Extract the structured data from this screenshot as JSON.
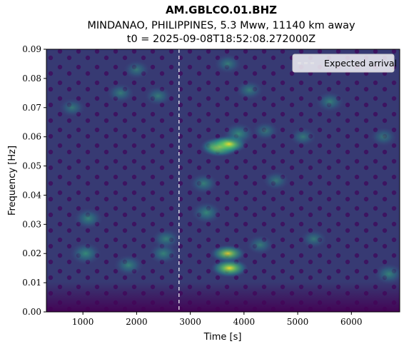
{
  "chart_data": {
    "type": "heatmap",
    "title": "AM.GBLCO.01.BHZ",
    "subtitle": "MINDANAO, PHILIPPINES, 5.3 Mww, 11140 km away",
    "subtitle2": "t0 = 2025-09-08T18:52:08.272000Z",
    "xlabel": "Time [s]",
    "ylabel": "Frequency [Hz]",
    "xlim": [
      320,
      6900
    ],
    "ylim": [
      0,
      0.09
    ],
    "xticks": [
      1000,
      2000,
      3000,
      4000,
      5000,
      6000
    ],
    "yticks": [
      0.0,
      0.01,
      0.02,
      0.03,
      0.04,
      0.05,
      0.06,
      0.07,
      0.08,
      0.09
    ],
    "ytick_labels": [
      "0.00",
      "0.01",
      "0.02",
      "0.03",
      "0.04",
      "0.05",
      "0.06",
      "0.07",
      "0.08",
      "0.09"
    ],
    "colormap": "viridis",
    "expected_arrival": 2790,
    "legend": {
      "label": "Expected arrival",
      "placement": "upper-right"
    },
    "hotspots": [
      {
        "t": 3550,
        "f": 0.0565,
        "intensity": 1.0
      },
      {
        "t": 3720,
        "f": 0.0575,
        "intensity": 0.8
      },
      {
        "t": 3900,
        "f": 0.061,
        "intensity": 0.55
      },
      {
        "t": 3730,
        "f": 0.015,
        "intensity": 0.85
      },
      {
        "t": 3700,
        "f": 0.02,
        "intensity": 0.7
      },
      {
        "t": 3300,
        "f": 0.034,
        "intensity": 0.5
      },
      {
        "t": 3250,
        "f": 0.044,
        "intensity": 0.4
      },
      {
        "t": 1050,
        "f": 0.02,
        "intensity": 0.55
      },
      {
        "t": 1100,
        "f": 0.032,
        "intensity": 0.45
      },
      {
        "t": 1850,
        "f": 0.016,
        "intensity": 0.45
      },
      {
        "t": 2500,
        "f": 0.02,
        "intensity": 0.45
      },
      {
        "t": 2550,
        "f": 0.025,
        "intensity": 0.4
      },
      {
        "t": 6700,
        "f": 0.013,
        "intensity": 0.45
      },
      {
        "t": 5600,
        "f": 0.072,
        "intensity": 0.4
      },
      {
        "t": 4100,
        "f": 0.076,
        "intensity": 0.35
      },
      {
        "t": 1700,
        "f": 0.075,
        "intensity": 0.35
      },
      {
        "t": 2400,
        "f": 0.074,
        "intensity": 0.35
      },
      {
        "t": 3700,
        "f": 0.085,
        "intensity": 0.35
      },
      {
        "t": 2000,
        "f": 0.083,
        "intensity": 0.3
      },
      {
        "t": 6600,
        "f": 0.06,
        "intensity": 0.3
      },
      {
        "t": 5100,
        "f": 0.06,
        "intensity": 0.3
      },
      {
        "t": 4600,
        "f": 0.045,
        "intensity": 0.3
      },
      {
        "t": 5300,
        "f": 0.025,
        "intensity": 0.3
      },
      {
        "t": 800,
        "f": 0.07,
        "intensity": 0.3
      },
      {
        "t": 4300,
        "f": 0.023,
        "intensity": 0.35
      },
      {
        "t": 4400,
        "f": 0.062,
        "intensity": 0.3
      }
    ]
  }
}
